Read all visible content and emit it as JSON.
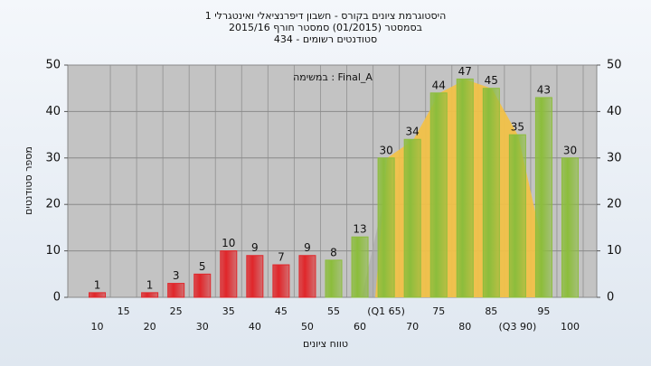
{
  "chart_data": {
    "type": "bar",
    "title": "היסטוגרמת ציונים בקורס - חשבון דיפרנציאלי ואינטגרלי 1",
    "subtitle": "בסמסטר  (01/2015)  סמסטר חורף  2015/16",
    "subtitle2": "סטודנטים רשומים - 434",
    "annotation": "במשימה : Final_A",
    "ylabel": "מספר סטודנטים",
    "xlabel": "טווח ציונים",
    "categories": [
      "10",
      "15",
      "20",
      "25",
      "30",
      "35",
      "40",
      "45",
      "50",
      "55",
      "60",
      "(Q1 65)",
      "70",
      "75",
      "80",
      "85",
      "(Q3 90)",
      "95",
      "100"
    ],
    "values": [
      1,
      0,
      1,
      3,
      5,
      10,
      9,
      7,
      9,
      8,
      13,
      30,
      34,
      44,
      47,
      45,
      35,
      43,
      30
    ],
    "colors": [
      "#e0262a",
      "#e0262a",
      "#e0262a",
      "#e0262a",
      "#e0262a",
      "#e0262a",
      "#e0262a",
      "#e0262a",
      "#e0262a",
      "#8cbd3c",
      "#8cbd3c",
      "#8cbd3c",
      "#8cbd3c",
      "#8cbd3c",
      "#8cbd3c",
      "#8cbd3c",
      "#8cbd3c",
      "#8cbd3c",
      "#8cbd3c"
    ],
    "ylim": [
      0,
      50
    ],
    "yticks": [
      0,
      10,
      20,
      30,
      40,
      50
    ],
    "y2lim": [
      0,
      50
    ],
    "y2ticks": [
      0,
      10,
      20,
      30,
      40,
      50
    ],
    "grid": true
  }
}
